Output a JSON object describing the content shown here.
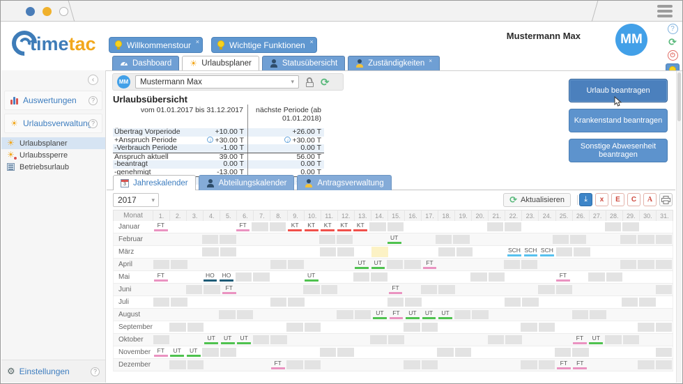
{
  "window": {
    "user_name": "Mustermann Max",
    "avatar_initials": "MM",
    "close_glyph": "×"
  },
  "logo": {
    "part1": "time",
    "part2": "tac"
  },
  "notice_tabs": [
    {
      "label": "Willkommenstour"
    },
    {
      "label": "Wichtige Funktionen"
    }
  ],
  "main_tabs": [
    {
      "label": "Dashboard"
    },
    {
      "label": "Urlaubsplaner"
    },
    {
      "label": "Statusübersicht"
    },
    {
      "label": "Zuständigkeiten"
    }
  ],
  "sidebar": {
    "items": [
      {
        "label": "Auswertungen"
      },
      {
        "label": "Urlaubsverwaltung"
      }
    ],
    "subitems": [
      {
        "label": "Urlaubsplaner"
      },
      {
        "label": "Urlaubssperre"
      },
      {
        "label": "Betriebsurlaub"
      }
    ],
    "settings_label": "Einstellungen",
    "help_glyph": "?"
  },
  "user_picker": {
    "value": "Mustermann Max",
    "avatar_initials": "MM"
  },
  "overview": {
    "title": "Urlaubsübersicht",
    "col1_header": "vom 01.01.2017 bis 31.12.2017",
    "col2_header": "nächste Periode (ab 01.01.2018)",
    "rows": [
      {
        "label": "Übertrag Vorperiode",
        "v1": "+10.00 T",
        "v2": "+26.00 T",
        "shade": true
      },
      {
        "label": "+Anspruch Periode",
        "v1": "+30.00 T",
        "v2": "+30.00 T",
        "info": true
      },
      {
        "label": "-Verbrauch Periode",
        "v1": "-1.00 T",
        "v2": "0.00 T",
        "shade": true
      },
      {
        "label": "Anspruch aktuell",
        "v1": "39.00 T",
        "v2": "56.00 T",
        "topline": true
      },
      {
        "label": "-beantragt",
        "v1": "0.00 T",
        "v2": "0.00 T",
        "shade": true
      },
      {
        "label": "-genehmigt",
        "v1": "-13.00 T",
        "v2": "0.00 T"
      },
      {
        "label": "Resturlaub",
        "v1": "26.00 T",
        "v2": "56.00 T",
        "bold": true,
        "topline": true,
        "shade": true
      }
    ]
  },
  "actions": [
    {
      "label": "Urlaub beantragen"
    },
    {
      "label": "Krankenstand beantragen"
    },
    {
      "label": "Sonstige Abwesenheit beantragen"
    }
  ],
  "cal_tabs": [
    {
      "label": "Jahreskalender"
    },
    {
      "label": "Abteilungskalender"
    },
    {
      "label": "Antragsverwaltung"
    }
  ],
  "toolbar": {
    "year": "2017",
    "refresh_label": "Aktualisieren",
    "export_glyphs": [
      "x",
      "E",
      "C"
    ]
  },
  "legend_colors": {
    "FT": "#ea93c1",
    "KT": "#f0504b",
    "UT": "#4fc24f",
    "HO": "#1e5b77",
    "SCH": "#57c1ef"
  },
  "calendar": {
    "month_header": "Monat",
    "day_labels": [
      "1.",
      "2.",
      "3.",
      "4.",
      "5.",
      "6.",
      "7.",
      "8.",
      "9.",
      "10.",
      "11.",
      "12.",
      "13.",
      "14.",
      "15.",
      "16.",
      "17.",
      "18.",
      "19.",
      "20.",
      "21.",
      "22.",
      "23.",
      "24.",
      "25.",
      "26.",
      "27.",
      "28.",
      "29.",
      "30.",
      "31."
    ],
    "months": [
      {
        "name": "Januar",
        "weekend": [
          7,
          8,
          14,
          15,
          21,
          22,
          28,
          29
        ],
        "disabled": [],
        "today": null,
        "entries": [
          {
            "day": 1,
            "type": "FT"
          },
          {
            "day": 6,
            "type": "FT"
          },
          {
            "day": 9,
            "type": "KT"
          },
          {
            "day": 10,
            "type": "KT"
          },
          {
            "day": 11,
            "type": "KT"
          },
          {
            "day": 12,
            "type": "KT"
          },
          {
            "day": 13,
            "type": "KT"
          }
        ]
      },
      {
        "name": "Februar",
        "weekend": [
          4,
          5,
          11,
          12,
          18,
          19,
          25,
          26
        ],
        "disabled": [
          29,
          30,
          31
        ],
        "today": null,
        "entries": [
          {
            "day": 15,
            "type": "UT"
          }
        ]
      },
      {
        "name": "März",
        "weekend": [
          4,
          5,
          11,
          12,
          18,
          19,
          25,
          26
        ],
        "disabled": [],
        "today": 14,
        "entries": [
          {
            "day": 22,
            "type": "SCH"
          },
          {
            "day": 23,
            "type": "SCH"
          },
          {
            "day": 24,
            "type": "SCH"
          }
        ]
      },
      {
        "name": "April",
        "weekend": [
          1,
          2,
          8,
          9,
          15,
          16,
          22,
          23,
          29,
          30
        ],
        "disabled": [
          31
        ],
        "today": null,
        "entries": [
          {
            "day": 13,
            "type": "UT"
          },
          {
            "day": 14,
            "type": "UT"
          },
          {
            "day": 17,
            "type": "FT"
          }
        ]
      },
      {
        "name": "Mai",
        "weekend": [
          6,
          7,
          13,
          14,
          20,
          21,
          27,
          28
        ],
        "disabled": [],
        "today": null,
        "entries": [
          {
            "day": 1,
            "type": "FT"
          },
          {
            "day": 4,
            "type": "HO"
          },
          {
            "day": 5,
            "type": "HO"
          },
          {
            "day": 10,
            "type": "UT"
          },
          {
            "day": 25,
            "type": "FT"
          }
        ]
      },
      {
        "name": "Juni",
        "weekend": [
          3,
          4,
          10,
          11,
          17,
          18,
          24,
          25
        ],
        "disabled": [
          31
        ],
        "today": null,
        "entries": [
          {
            "day": 5,
            "type": "FT"
          },
          {
            "day": 15,
            "type": "FT"
          }
        ]
      },
      {
        "name": "Juli",
        "weekend": [
          1,
          2,
          8,
          9,
          15,
          16,
          22,
          23,
          29,
          30
        ],
        "disabled": [],
        "today": null,
        "entries": []
      },
      {
        "name": "August",
        "weekend": [
          5,
          6,
          12,
          13,
          19,
          20,
          26,
          27
        ],
        "disabled": [],
        "today": null,
        "entries": [
          {
            "day": 14,
            "type": "UT"
          },
          {
            "day": 15,
            "type": "FT"
          },
          {
            "day": 16,
            "type": "UT"
          },
          {
            "day": 17,
            "type": "UT"
          },
          {
            "day": 18,
            "type": "UT"
          }
        ]
      },
      {
        "name": "September",
        "weekend": [
          2,
          3,
          9,
          10,
          16,
          17,
          23,
          24,
          30
        ],
        "disabled": [
          31
        ],
        "today": null,
        "entries": []
      },
      {
        "name": "Oktober",
        "weekend": [
          1,
          7,
          8,
          14,
          15,
          21,
          22,
          28,
          29
        ],
        "disabled": [],
        "today": null,
        "entries": [
          {
            "day": 4,
            "type": "UT"
          },
          {
            "day": 5,
            "type": "UT"
          },
          {
            "day": 6,
            "type": "UT"
          },
          {
            "day": 26,
            "type": "FT"
          },
          {
            "day": 27,
            "type": "UT"
          }
        ]
      },
      {
        "name": "November",
        "weekend": [
          4,
          5,
          11,
          12,
          18,
          19,
          25,
          26
        ],
        "disabled": [
          31
        ],
        "today": null,
        "entries": [
          {
            "day": 1,
            "type": "FT"
          },
          {
            "day": 2,
            "type": "UT"
          },
          {
            "day": 3,
            "type": "UT"
          }
        ]
      },
      {
        "name": "Dezember",
        "weekend": [
          2,
          3,
          9,
          10,
          16,
          17,
          23,
          24,
          30,
          31
        ],
        "disabled": [],
        "today": null,
        "entries": [
          {
            "day": 8,
            "type": "FT"
          },
          {
            "day": 25,
            "type": "FT"
          },
          {
            "day": 26,
            "type": "FT"
          }
        ]
      }
    ]
  }
}
